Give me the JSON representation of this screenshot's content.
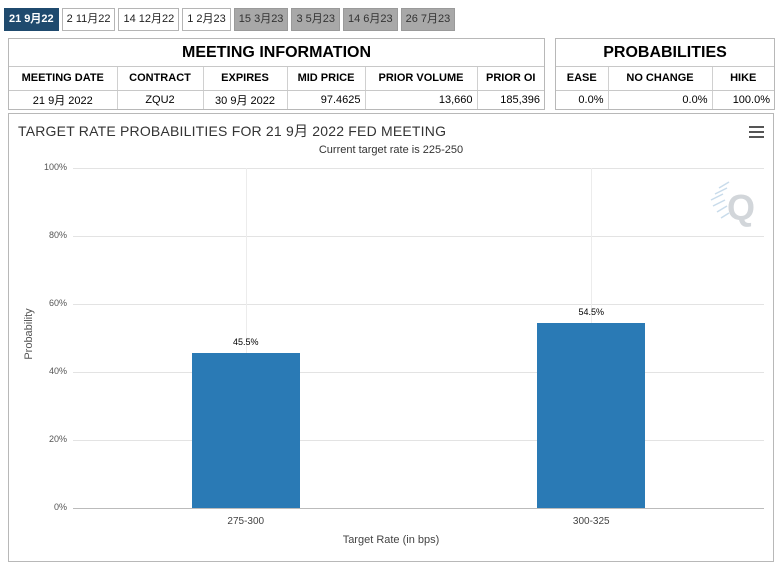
{
  "tabs": [
    {
      "label": "21 9月22",
      "state": "active"
    },
    {
      "label": "2 11月22",
      "state": "normal"
    },
    {
      "label": "14 12月22",
      "state": "normal"
    },
    {
      "label": "1 2月23",
      "state": "normal"
    },
    {
      "label": "15 3月23",
      "state": "disabled"
    },
    {
      "label": "3 5月23",
      "state": "disabled"
    },
    {
      "label": "14 6月23",
      "state": "disabled"
    },
    {
      "label": "26 7月23",
      "state": "disabled"
    }
  ],
  "meeting": {
    "title": "MEETING INFORMATION",
    "headers": [
      "MEETING DATE",
      "CONTRACT",
      "EXPIRES",
      "MID PRICE",
      "PRIOR VOLUME",
      "PRIOR OI"
    ],
    "row": [
      "21 9月 2022",
      "ZQU2",
      "30 9月 2022",
      "97.4625",
      "13,660",
      "185,396"
    ]
  },
  "probabilities": {
    "title": "PROBABILITIES",
    "headers": [
      "EASE",
      "NO CHANGE",
      "HIKE"
    ],
    "row": [
      "0.0%",
      "0.0%",
      "100.0%"
    ]
  },
  "colors": {
    "bar": "#2a7ab5",
    "active_tab": "#1f4a6e",
    "disabled_tab": "#a8a8a8"
  },
  "icons": {
    "menu": "hamburger-menu-icon",
    "watermark": "quikstrike-q-watermark-icon"
  },
  "chart_data": {
    "type": "bar",
    "title": "TARGET RATE PROBABILITIES FOR 21 9月 2022 FED MEETING",
    "subtitle": "Current target rate is 225-250",
    "xlabel": "Target Rate (in bps)",
    "ylabel": "Probability",
    "categories": [
      "275-300",
      "300-325"
    ],
    "values": [
      45.5,
      54.5
    ],
    "data_labels": [
      "45.5%",
      "54.5%"
    ],
    "ylim": [
      0,
      100
    ],
    "yticks": [
      0,
      20,
      40,
      60,
      80,
      100
    ],
    "ytick_labels": [
      "0%",
      "20%",
      "40%",
      "60%",
      "80%",
      "100%"
    ],
    "grid": true,
    "legend": "none"
  }
}
